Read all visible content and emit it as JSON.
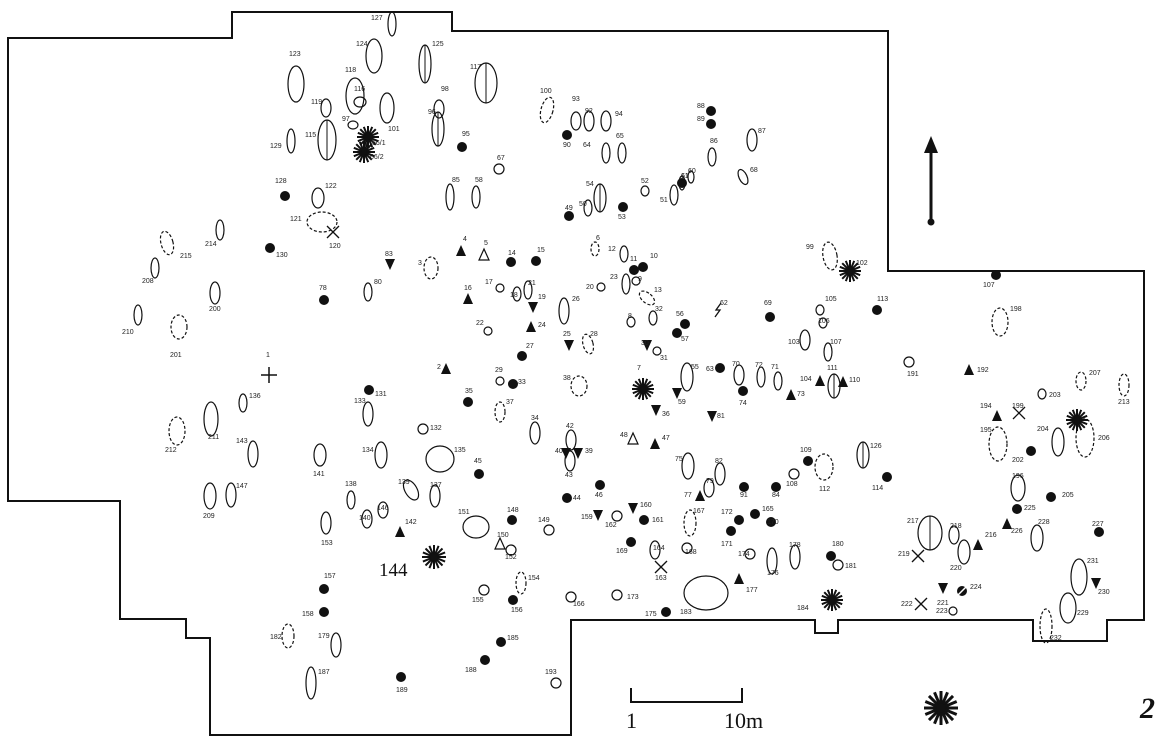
{
  "figure_number": "2",
  "scale_bar": {
    "start_label": "1",
    "end_label": "10m"
  },
  "highlighted_feature": "144",
  "legend": {
    "symbol": "asterisk-icon"
  },
  "north_arrow": {
    "symbol": "up-arrow-icon"
  },
  "features": [
    {
      "id": "127",
      "kind": "oval"
    },
    {
      "id": "125",
      "kind": "oval-axis"
    },
    {
      "id": "124",
      "kind": "oval"
    },
    {
      "id": "123",
      "kind": "oval"
    },
    {
      "id": "118",
      "kind": "oval"
    },
    {
      "id": "117",
      "kind": "oval-axis"
    },
    {
      "id": "119",
      "kind": "oval"
    },
    {
      "id": "116",
      "kind": "oval"
    },
    {
      "id": "97",
      "kind": "oval"
    },
    {
      "id": "101",
      "kind": "oval"
    },
    {
      "id": "98",
      "kind": "oval"
    },
    {
      "id": "96",
      "kind": "oval-axis"
    },
    {
      "id": "115",
      "kind": "oval-axis"
    },
    {
      "id": "129",
      "kind": "oval"
    },
    {
      "id": "66/1",
      "kind": "star"
    },
    {
      "id": "66/2",
      "kind": "star"
    },
    {
      "id": "95",
      "kind": "dot"
    },
    {
      "id": "100",
      "kind": "dashed"
    },
    {
      "id": "93",
      "kind": "oval"
    },
    {
      "id": "92",
      "kind": "oval"
    },
    {
      "id": "94",
      "kind": "oval"
    },
    {
      "id": "90",
      "kind": "dot"
    },
    {
      "id": "64",
      "kind": "oval"
    },
    {
      "id": "65",
      "kind": "oval"
    },
    {
      "id": "88",
      "kind": "dot"
    },
    {
      "id": "89",
      "kind": "dot"
    },
    {
      "id": "87",
      "kind": "oval"
    },
    {
      "id": "86",
      "kind": "oval"
    },
    {
      "id": "68",
      "kind": "oval"
    },
    {
      "id": "60",
      "kind": "oval"
    },
    {
      "id": "61",
      "kind": "oval"
    },
    {
      "id": "51",
      "kind": "oval"
    },
    {
      "id": "52",
      "kind": "oval"
    },
    {
      "id": "67",
      "kind": "circle"
    },
    {
      "id": "128",
      "kind": "dot"
    },
    {
      "id": "122",
      "kind": "oval"
    },
    {
      "id": "121",
      "kind": "dashed"
    },
    {
      "id": "120",
      "kind": "cross"
    },
    {
      "id": "85",
      "kind": "oval"
    },
    {
      "id": "58",
      "kind": "oval"
    },
    {
      "id": "54",
      "kind": "oval-axis"
    },
    {
      "id": "50",
      "kind": "oval"
    },
    {
      "id": "49",
      "kind": "dot"
    },
    {
      "id": "53",
      "kind": "dot"
    },
    {
      "id": "6",
      "kind": "dashed"
    },
    {
      "id": "214",
      "kind": "oval"
    },
    {
      "id": "215",
      "kind": "dashed"
    },
    {
      "id": "130",
      "kind": "dot"
    },
    {
      "id": "83",
      "kind": "tri-down"
    },
    {
      "id": "3",
      "kind": "dashed"
    },
    {
      "id": "4",
      "kind": "tri-up"
    },
    {
      "id": "5",
      "kind": "tri-up-open"
    },
    {
      "id": "14",
      "kind": "dot"
    },
    {
      "id": "15",
      "kind": "dot"
    },
    {
      "id": "12",
      "kind": "oval"
    },
    {
      "id": "11",
      "kind": "dot"
    },
    {
      "id": "10",
      "kind": "dot"
    },
    {
      "id": "9",
      "kind": "circle"
    },
    {
      "id": "23",
      "kind": "oval"
    },
    {
      "id": "20",
      "kind": "circle"
    },
    {
      "id": "13",
      "kind": "dashed"
    },
    {
      "id": "99",
      "kind": "dashed"
    },
    {
      "id": "102",
      "kind": "star"
    },
    {
      "id": "107",
      "kind": "dot"
    },
    {
      "id": "208",
      "kind": "oval"
    },
    {
      "id": "78",
      "kind": "dot"
    },
    {
      "id": "80",
      "kind": "oval"
    },
    {
      "id": "16",
      "kind": "tri-up"
    },
    {
      "id": "17",
      "kind": "circle"
    },
    {
      "id": "18",
      "kind": "oval"
    },
    {
      "id": "21",
      "kind": "oval"
    },
    {
      "id": "19",
      "kind": "tri-down"
    },
    {
      "id": "26",
      "kind": "oval"
    },
    {
      "id": "24",
      "kind": "tri-up"
    },
    {
      "id": "22",
      "kind": "circle"
    },
    {
      "id": "200",
      "kind": "oval"
    },
    {
      "id": "210",
      "kind": "oval"
    },
    {
      "id": "201",
      "kind": "dashed"
    },
    {
      "id": "8",
      "kind": "circle"
    },
    {
      "id": "32",
      "kind": "oval"
    },
    {
      "id": "56",
      "kind": "dot"
    },
    {
      "id": "57",
      "kind": "dot"
    },
    {
      "id": "62",
      "kind": "bolt"
    },
    {
      "id": "69",
      "kind": "dot"
    },
    {
      "id": "105",
      "kind": "circle"
    },
    {
      "id": "106",
      "kind": "circle"
    },
    {
      "id": "113",
      "kind": "dot"
    },
    {
      "id": "198",
      "kind": "dashed"
    },
    {
      "id": "25",
      "kind": "tri-down"
    },
    {
      "id": "28",
      "kind": "dashed"
    },
    {
      "id": "27",
      "kind": "dot"
    },
    {
      "id": "30",
      "kind": "tri-down"
    },
    {
      "id": "31",
      "kind": "circle"
    },
    {
      "id": "61",
      "kind": "dot"
    },
    {
      "id": "103",
      "kind": "oval"
    },
    {
      "id": "107b",
      "kind": "oval",
      "label": "107"
    },
    {
      "id": "1",
      "kind": "plus"
    },
    {
      "id": "2",
      "kind": "tri-up"
    },
    {
      "id": "131",
      "kind": "dot"
    },
    {
      "id": "35",
      "kind": "dot"
    },
    {
      "id": "29",
      "kind": "circle"
    },
    {
      "id": "33",
      "kind": "dot"
    },
    {
      "id": "38",
      "kind": "dashed"
    },
    {
      "id": "7",
      "kind": "star"
    },
    {
      "id": "55",
      "kind": "oval"
    },
    {
      "id": "63",
      "kind": "dot"
    },
    {
      "id": "70",
      "kind": "oval"
    },
    {
      "id": "72",
      "kind": "oval"
    },
    {
      "id": "71",
      "kind": "oval"
    },
    {
      "id": "104",
      "kind": "tri-up"
    },
    {
      "id": "111",
      "kind": "oval-axis"
    },
    {
      "id": "110",
      "kind": "tri-up"
    },
    {
      "id": "73",
      "kind": "tri-up"
    },
    {
      "id": "191",
      "kind": "circle"
    },
    {
      "id": "192",
      "kind": "tri-up"
    },
    {
      "id": "136",
      "kind": "oval"
    },
    {
      "id": "133",
      "kind": "oval"
    },
    {
      "id": "37",
      "kind": "dashed"
    },
    {
      "id": "59",
      "kind": "tri-down"
    },
    {
      "id": "36",
      "kind": "tri-down"
    },
    {
      "id": "74",
      "kind": "dot"
    },
    {
      "id": "81",
      "kind": "tri-down"
    },
    {
      "id": "207",
      "kind": "dashed"
    },
    {
      "id": "213",
      "kind": "dashed"
    },
    {
      "id": "203",
      "kind": "circle"
    },
    {
      "id": "194",
      "kind": "tri-up"
    },
    {
      "id": "199",
      "kind": "cross"
    },
    {
      "id": "195",
      "kind": "dashed"
    },
    {
      "id": "204",
      "kind": "oval"
    },
    {
      "id": "206",
      "kind": "dashed"
    },
    {
      "id": "206s",
      "kind": "star",
      "label": ""
    },
    {
      "id": "211",
      "kind": "oval"
    },
    {
      "id": "212",
      "kind": "dashed"
    },
    {
      "id": "143",
      "kind": "oval"
    },
    {
      "id": "134",
      "kind": "oval"
    },
    {
      "id": "132",
      "kind": "circle"
    },
    {
      "id": "135",
      "kind": "oval"
    },
    {
      "id": "34",
      "kind": "oval"
    },
    {
      "id": "42",
      "kind": "oval"
    },
    {
      "id": "40",
      "kind": "tri-down"
    },
    {
      "id": "39",
      "kind": "tri-down"
    },
    {
      "id": "48",
      "kind": "tri-up-open"
    },
    {
      "id": "47",
      "kind": "tri-up"
    },
    {
      "id": "43",
      "kind": "oval"
    },
    {
      "id": "109",
      "kind": "dot"
    },
    {
      "id": "112",
      "kind": "dashed"
    },
    {
      "id": "126",
      "kind": "oval-axis"
    },
    {
      "id": "202",
      "kind": "dot"
    },
    {
      "id": "141",
      "kind": "oval"
    },
    {
      "id": "45",
      "kind": "dot"
    },
    {
      "id": "75",
      "kind": "oval"
    },
    {
      "id": "82",
      "kind": "oval"
    },
    {
      "id": "79",
      "kind": "oval"
    },
    {
      "id": "77",
      "kind": "tri-up"
    },
    {
      "id": "91",
      "kind": "dot"
    },
    {
      "id": "84",
      "kind": "dot"
    },
    {
      "id": "108",
      "kind": "circle"
    },
    {
      "id": "114",
      "kind": "dot"
    },
    {
      "id": "196",
      "kind": "oval"
    },
    {
      "id": "205",
      "kind": "dot"
    },
    {
      "id": "209",
      "kind": "oval"
    },
    {
      "id": "147",
      "kind": "oval"
    },
    {
      "id": "138",
      "kind": "oval"
    },
    {
      "id": "139",
      "kind": "oval"
    },
    {
      "id": "137",
      "kind": "oval"
    },
    {
      "id": "46",
      "kind": "dot"
    },
    {
      "id": "44",
      "kind": "dot"
    },
    {
      "id": "160",
      "kind": "tri-down"
    },
    {
      "id": "161",
      "kind": "dot"
    },
    {
      "id": "159",
      "kind": "tri-down"
    },
    {
      "id": "162",
      "kind": "circle"
    },
    {
      "id": "167",
      "kind": "dashed"
    },
    {
      "id": "165",
      "kind": "dot"
    },
    {
      "id": "172",
      "kind": "dot"
    },
    {
      "id": "170",
      "kind": "dot"
    },
    {
      "id": "171",
      "kind": "dot"
    },
    {
      "id": "225",
      "kind": "dot"
    },
    {
      "id": "228",
      "kind": "oval"
    },
    {
      "id": "227",
      "kind": "dot"
    },
    {
      "id": "146",
      "kind": "oval"
    },
    {
      "id": "140",
      "kind": "oval"
    },
    {
      "id": "142",
      "kind": "tri-up"
    },
    {
      "id": "153",
      "kind": "oval"
    },
    {
      "id": "151",
      "kind": "oval"
    },
    {
      "id": "148",
      "kind": "dot"
    },
    {
      "id": "149",
      "kind": "circle"
    },
    {
      "id": "150",
      "kind": "tri-up-open"
    },
    {
      "id": "152",
      "kind": "circle"
    },
    {
      "id": "169",
      "kind": "dot"
    },
    {
      "id": "164",
      "kind": "oval"
    },
    {
      "id": "163",
      "kind": "cross"
    },
    {
      "id": "168",
      "kind": "circle"
    },
    {
      "id": "174",
      "kind": "circle"
    },
    {
      "id": "176",
      "kind": "oval"
    },
    {
      "id": "178",
      "kind": "oval"
    },
    {
      "id": "180",
      "kind": "dot"
    },
    {
      "id": "181",
      "kind": "circle"
    },
    {
      "id": "217",
      "kind": "oval-axis"
    },
    {
      "id": "218",
      "kind": "oval"
    },
    {
      "id": "220",
      "kind": "oval"
    },
    {
      "id": "216",
      "kind": "tri-up"
    },
    {
      "id": "226",
      "kind": "tri-up"
    },
    {
      "id": "219",
      "kind": "cross"
    },
    {
      "id": "231",
      "kind": "oval"
    },
    {
      "id": "230",
      "kind": "tri-down"
    },
    {
      "id": "144",
      "kind": "star"
    },
    {
      "id": "157",
      "kind": "dot"
    },
    {
      "id": "154",
      "kind": "dashed"
    },
    {
      "id": "155",
      "kind": "circle"
    },
    {
      "id": "156",
      "kind": "dot"
    },
    {
      "id": "166",
      "kind": "circle"
    },
    {
      "id": "173",
      "kind": "circle"
    },
    {
      "id": "175",
      "kind": "dot"
    },
    {
      "id": "183",
      "kind": "oval"
    },
    {
      "id": "177",
      "kind": "tri-up"
    },
    {
      "id": "184",
      "kind": "star"
    },
    {
      "id": "222",
      "kind": "cross"
    },
    {
      "id": "221",
      "kind": "tri-down"
    },
    {
      "id": "224",
      "kind": "dot-slash"
    },
    {
      "id": "223",
      "kind": "circle"
    },
    {
      "id": "229",
      "kind": "oval"
    },
    {
      "id": "232",
      "kind": "dashed"
    },
    {
      "id": "158",
      "kind": "dot"
    },
    {
      "id": "182",
      "kind": "dashed"
    },
    {
      "id": "179",
      "kind": "oval"
    },
    {
      "id": "185",
      "kind": "dot"
    },
    {
      "id": "188",
      "kind": "dot"
    },
    {
      "id": "187",
      "kind": "oval"
    },
    {
      "id": "189",
      "kind": "dot"
    },
    {
      "id": "193",
      "kind": "circle"
    }
  ]
}
